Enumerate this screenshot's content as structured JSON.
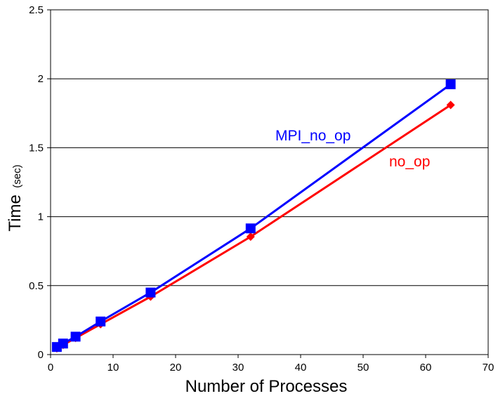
{
  "chart_data": {
    "type": "line",
    "xlabel": "Number of Processes",
    "ylabel": {
      "main": "Time",
      "unit": "(sec)"
    },
    "xlim": [
      0,
      70
    ],
    "ylim": [
      0,
      2.5
    ],
    "xticks": [
      0,
      10,
      20,
      30,
      40,
      50,
      60,
      70
    ],
    "yticks": [
      0,
      0.5,
      1,
      1.5,
      2,
      2.5
    ],
    "ytick_labels": [
      "0",
      "0.5",
      "1",
      "1.5",
      "2",
      "2.5"
    ],
    "grid": "horizontal",
    "legend": "inline-labels",
    "series": [
      {
        "name": "MPI_no_op",
        "color": "#0000ff",
        "marker": "square",
        "x": [
          1,
          2,
          4,
          8,
          16,
          32,
          64
        ],
        "y": [
          0.055,
          0.08,
          0.13,
          0.24,
          0.45,
          0.915,
          1.96
        ]
      },
      {
        "name": "no_op",
        "color": "#ff0000",
        "marker": "diamond",
        "x": [
          1,
          2,
          4,
          8,
          16,
          32,
          64
        ],
        "y": [
          0.045,
          0.07,
          0.12,
          0.22,
          0.42,
          0.855,
          1.81
        ]
      }
    ]
  }
}
